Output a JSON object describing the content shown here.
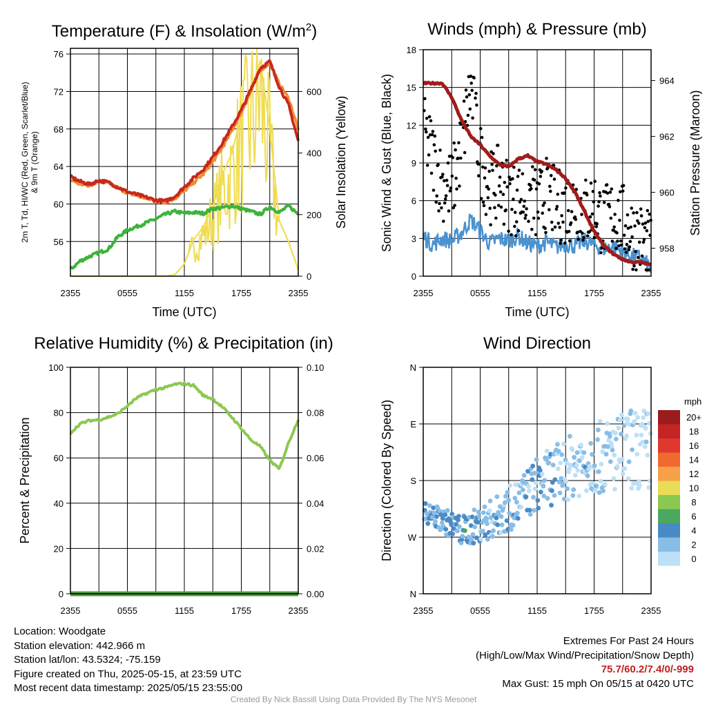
{
  "chart_data": [
    {
      "type": "line",
      "title": "Temperature (F) & Insolation (W/m²)",
      "title_main": "Temperature (F) & Insolation (W/m",
      "title_sup": "2",
      "title_end": ")",
      "xlabel": "Time (UTC)",
      "ylabel_left_line1": "2m T, Td, HI/WC (Red, Green, Scarlet/Blue)",
      "ylabel_left_line2": "& 9m T (Orange)",
      "ylabel_right": "Solar Insolation (Yellow)",
      "x_ticks": [
        "2355",
        "0555",
        "1155",
        "1755",
        "2355"
      ],
      "y_left_ticks": [
        "76",
        "72",
        "68",
        "64",
        "60",
        "56"
      ],
      "y_right_ticks": [
        "600",
        "400",
        "200",
        "0"
      ],
      "ylim_left": [
        52.3,
        76.6
      ],
      "ylim_right": [
        0,
        740
      ],
      "x_hours": [
        0,
        1,
        2,
        3,
        4,
        5,
        6,
        7,
        8,
        9,
        10,
        11,
        12,
        13,
        14,
        15,
        16,
        17,
        18,
        19,
        20,
        21,
        22,
        23,
        24
      ],
      "series": [
        {
          "key": "t2m",
          "color": "#c8281e",
          "values": [
            62.9,
            62.4,
            62.1,
            62.5,
            62.3,
            61.8,
            61.3,
            61.0,
            60.7,
            60.4,
            60.3,
            60.8,
            61.8,
            62.8,
            63.7,
            65.0,
            66.5,
            68.2,
            70.0,
            72.2,
            74.5,
            75.2,
            72.5,
            70.5,
            66.7
          ]
        },
        {
          "key": "t9m",
          "color": "#f08c32",
          "values": [
            62.7,
            62.2,
            62.0,
            62.4,
            62.2,
            61.7,
            61.2,
            60.9,
            60.6,
            60.3,
            60.2,
            60.6,
            61.4,
            62.3,
            63.2,
            64.5,
            66.0,
            67.8,
            69.8,
            72.0,
            74.3,
            75.0,
            72.8,
            71.2,
            68.0
          ]
        },
        {
          "key": "td",
          "color": "#3cb43c",
          "values": [
            53.0,
            53.9,
            54.4,
            54.8,
            55.2,
            56.5,
            57.2,
            57.6,
            58.0,
            58.4,
            58.9,
            59.2,
            59.0,
            59.1,
            59.0,
            59.5,
            59.6,
            59.8,
            59.5,
            59.2,
            58.9,
            59.7,
            59.1,
            59.8,
            58.9
          ]
        },
        {
          "key": "solar",
          "color": "#f0dc50",
          "axis": "right",
          "values": [
            0,
            0,
            0,
            0,
            0,
            0,
            0,
            0,
            0,
            0,
            0,
            5,
            40,
            120,
            160,
            230,
            330,
            400,
            520,
            600,
            700,
            480,
            180,
            110,
            20
          ]
        }
      ]
    },
    {
      "type": "scatter",
      "title": "Winds (mph) & Pressure (mb)",
      "xlabel": "Time (UTC)",
      "ylabel_left": "Sonic Wind & Gust (Blue, Black)",
      "ylabel_right": "Station Pressure (Maroon)",
      "x_ticks": [
        "2355",
        "0555",
        "1155",
        "1755",
        "2355"
      ],
      "y_left_ticks": [
        "18",
        "15",
        "12",
        "9",
        "6",
        "3",
        "0"
      ],
      "y_right_ticks": [
        "964",
        "962",
        "960",
        "958"
      ],
      "ylim_left": [
        0,
        18
      ],
      "ylim_right": [
        957.0,
        965.1
      ],
      "x_hours": [
        0,
        1,
        2,
        3,
        4,
        5,
        6,
        7,
        8,
        9,
        10,
        11,
        12,
        13,
        14,
        15,
        16,
        17,
        18,
        19,
        20,
        21,
        22,
        23,
        24
      ],
      "series": [
        {
          "key": "pressure",
          "color": "#a01c1c",
          "axis": "right",
          "values": [
            963.9,
            963.9,
            963.9,
            963.4,
            962.6,
            962.0,
            961.7,
            961.3,
            961.0,
            960.9,
            961.2,
            961.3,
            961.1,
            961.0,
            960.8,
            960.5,
            960.0,
            959.3,
            958.6,
            958.1,
            957.8,
            957.6,
            957.5,
            957.5,
            957.4
          ]
        },
        {
          "key": "wind",
          "color": "#4a92d0",
          "values": [
            3.2,
            2.5,
            3.0,
            2.8,
            3.4,
            4.5,
            3.6,
            2.6,
            3.0,
            2.8,
            3.2,
            2.6,
            2.4,
            2.7,
            2.3,
            2.6,
            2.4,
            2.8,
            2.5,
            2.2,
            2.4,
            1.9,
            1.6,
            1.4,
            0.6
          ]
        },
        {
          "key": "gust",
          "color": "#000000",
          "values": [
            11.5,
            9.6,
            7.3,
            7.0,
            10.2,
            15.0,
            9.3,
            7.0,
            7.5,
            6.4,
            6.0,
            6.8,
            5.5,
            6.5,
            5.7,
            5.3,
            6.1,
            5.0,
            5.6,
            4.3,
            4.9,
            4.4,
            3.5,
            2.9,
            2.0
          ]
        }
      ]
    },
    {
      "type": "line",
      "title": "Relative Humidity (%) & Precipitation (in)",
      "ylabel_left": "Percent & Precipitation",
      "x_ticks": [
        "2355",
        "0555",
        "1155",
        "1755",
        "2355"
      ],
      "y_left_ticks": [
        "100",
        "80",
        "60",
        "40",
        "20",
        "0"
      ],
      "y_right_ticks": [
        "0.10",
        "0.08",
        "0.06",
        "0.04",
        "0.02",
        "0.00"
      ],
      "ylim_left": [
        0,
        100
      ],
      "ylim_right": [
        0,
        0.1
      ],
      "x_hours": [
        0,
        1,
        2,
        3,
        4,
        5,
        6,
        7,
        8,
        9,
        10,
        11,
        12,
        13,
        14,
        15,
        16,
        17,
        18,
        19,
        20,
        21,
        22,
        23,
        24
      ],
      "series": [
        {
          "key": "rh",
          "color": "#8cc850",
          "values": [
            71,
            75,
            76.5,
            76.8,
            78,
            79.5,
            83,
            86.5,
            88.5,
            90.2,
            91,
            92.5,
            92.8,
            92,
            87.5,
            86,
            82.5,
            78,
            73,
            68,
            65,
            59,
            55,
            67,
            77
          ]
        },
        {
          "key": "precip",
          "color": "#4a9a3a",
          "axis": "right",
          "values": [
            0,
            0,
            0,
            0,
            0,
            0,
            0,
            0,
            0,
            0,
            0,
            0,
            0,
            0,
            0,
            0,
            0,
            0,
            0,
            0,
            0,
            0,
            0,
            0,
            0
          ]
        }
      ]
    },
    {
      "type": "scatter",
      "title": "Wind Direction",
      "ylabel_left": "Direction (Colored By Speed)",
      "x_ticks": [
        "2355",
        "0555",
        "1155",
        "1755",
        "2355"
      ],
      "y_ticks": [
        "N",
        "W",
        "S",
        "E",
        "N"
      ],
      "ylim": [
        0,
        360
      ],
      "direction_trend_hours": [
        0,
        2,
        4,
        6,
        8,
        10,
        12,
        14,
        16,
        18,
        20,
        22,
        24
      ],
      "direction_trend_degrees": [
        130,
        118,
        100,
        110,
        125,
        145,
        175,
        190,
        205,
        215,
        220,
        230,
        225
      ],
      "legend": {
        "title": "mph",
        "labels": [
          "20+",
          "18",
          "16",
          "14",
          "12",
          "10",
          "8",
          "6",
          "4",
          "2",
          "0"
        ],
        "colors": [
          "#9b1c1c",
          "#c42424",
          "#e0382e",
          "#f06a30",
          "#f6a048",
          "#e8dc58",
          "#8cc850",
          "#4aa860",
          "#4a8ac4",
          "#88bde6",
          "#bde0f6"
        ]
      }
    }
  ],
  "info": {
    "location": "Location: Woodgate",
    "elevation": "Station elevation: 442.966 m",
    "latlon": "Station lat/lon: 43.5324; -75.159",
    "created": "Figure created on Thu, 2025-05-15, at 23:59 UTC",
    "recent": "Most recent data timestamp: 2025/05/15 23:55:00"
  },
  "extremes": {
    "line1": "Extremes For Past 24 Hours",
    "line2": "(High/Low/Max Wind/Precipitation/Snow Depth)",
    "values": "75.7/60.2/7.4/0/-999",
    "gust": "Max Gust: 15 mph On 05/15 at 0420 UTC"
  },
  "footer": "Created By Nick Bassill Using Data Provided By The NYS Mesonet"
}
